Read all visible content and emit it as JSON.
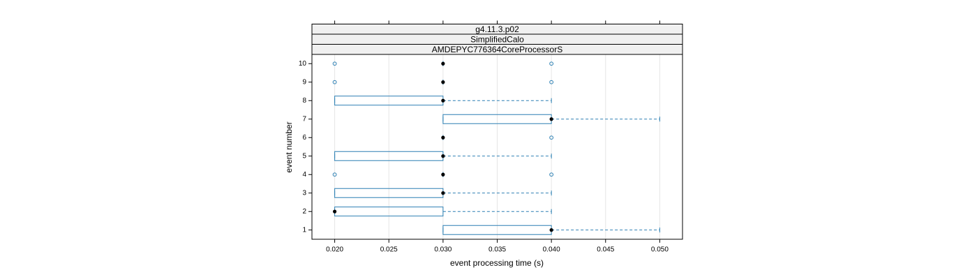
{
  "chart_data": {
    "type": "box",
    "strips": [
      "g4.11.3.p02",
      "SimplifiedCalo",
      "AMDEPYC776364CoreProcessorS"
    ],
    "x_label": "event processing time (s)",
    "y_label": "event number",
    "orientation": "horizontal",
    "color": "#2b7fb3",
    "median_color": "#000000",
    "grid": true,
    "xlim": [
      0.0179,
      0.0521
    ],
    "xticks": [
      {
        "value": 0.02,
        "label": "0.020"
      },
      {
        "value": 0.025,
        "label": "0.025"
      },
      {
        "value": 0.03,
        "label": "0.030"
      },
      {
        "value": 0.035,
        "label": "0.035"
      },
      {
        "value": 0.04,
        "label": "0.040"
      },
      {
        "value": 0.045,
        "label": "0.045"
      },
      {
        "value": 0.05,
        "label": "0.050"
      }
    ],
    "categories": [
      "1",
      "2",
      "3",
      "4",
      "5",
      "6",
      "7",
      "8",
      "9",
      "10"
    ],
    "boxes": [
      {
        "min": 0.03,
        "q1": 0.03,
        "median": 0.04,
        "q3": 0.04,
        "max": 0.05,
        "outliers": []
      },
      {
        "min": 0.02,
        "q1": 0.02,
        "median": 0.02,
        "q3": 0.03,
        "max": 0.04,
        "outliers": []
      },
      {
        "min": 0.02,
        "q1": 0.02,
        "median": 0.03,
        "q3": 0.03,
        "max": 0.04,
        "outliers": []
      },
      {
        "min": 0.03,
        "q1": 0.03,
        "median": 0.03,
        "q3": 0.03,
        "max": 0.03,
        "outliers": [
          0.02,
          0.04
        ]
      },
      {
        "min": 0.02,
        "q1": 0.02,
        "median": 0.03,
        "q3": 0.03,
        "max": 0.04,
        "outliers": []
      },
      {
        "min": 0.03,
        "q1": 0.03,
        "median": 0.03,
        "q3": 0.03,
        "max": 0.03,
        "outliers": [
          0.04
        ]
      },
      {
        "min": 0.03,
        "q1": 0.03,
        "median": 0.04,
        "q3": 0.04,
        "max": 0.05,
        "outliers": []
      },
      {
        "min": 0.02,
        "q1": 0.02,
        "median": 0.03,
        "q3": 0.03,
        "max": 0.04,
        "outliers": []
      },
      {
        "min": 0.03,
        "q1": 0.03,
        "median": 0.03,
        "q3": 0.03,
        "max": 0.03,
        "outliers": [
          0.02,
          0.04
        ]
      },
      {
        "min": 0.03,
        "q1": 0.03,
        "median": 0.03,
        "q3": 0.03,
        "max": 0.03,
        "outliers": [
          0.02,
          0.04
        ]
      }
    ]
  }
}
